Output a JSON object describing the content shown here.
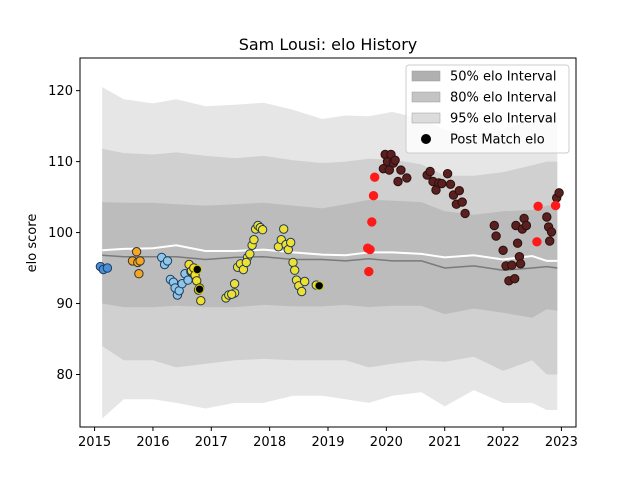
{
  "chart_data": {
    "type": "scatter",
    "title": "Sam Lousi: elo History",
    "xlabel": "",
    "ylabel": "elo score",
    "xlim": [
      2014.75,
      2023.25
    ],
    "ylim": [
      72.6,
      124.6
    ],
    "xticks": [
      2015,
      2016,
      2017,
      2018,
      2019,
      2020,
      2021,
      2022,
      2023
    ],
    "yticks": [
      80,
      90,
      100,
      110,
      120
    ],
    "grid": false,
    "legend_position": "top-right",
    "legend": [
      {
        "label": "50% elo Interval",
        "kind": "band",
        "color": "#b0b0b0"
      },
      {
        "label": "80% elo Interval",
        "kind": "band",
        "color": "#c4c4c4"
      },
      {
        "label": "95% elo Interval",
        "kind": "band",
        "color": "#dcdcdc"
      },
      {
        "label": "Post Match elo",
        "kind": "marker",
        "color": "#000000"
      }
    ],
    "band_x": [
      2015.13,
      2015.5,
      2016.0,
      2016.4,
      2016.9,
      2017.4,
      2017.9,
      2018.4,
      2018.9,
      2019.3,
      2019.7,
      2020.1,
      2020.6,
      2021.0,
      2021.5,
      2022.0,
      2022.5,
      2022.75,
      2022.93
    ],
    "bands": {
      "p95": {
        "color": "#e2e2e2",
        "upper": [
          120.5,
          118.8,
          118.2,
          118.8,
          117.8,
          118.0,
          118.3,
          117.3,
          116.0,
          116.5,
          116.4,
          117.0,
          116.0,
          114.5,
          114.0,
          114.5,
          116.0,
          116.8,
          116.5
        ],
        "lower": [
          73.8,
          76.5,
          76.5,
          76.0,
          75.2,
          76.0,
          76.0,
          77.0,
          77.0,
          76.5,
          76.0,
          77.0,
          77.5,
          75.5,
          77.8,
          76.0,
          76.0,
          75.0,
          75.0
        ]
      },
      "p80": {
        "color": "#cbcbcb",
        "upper": [
          111.8,
          111.2,
          111.0,
          111.3,
          110.8,
          110.5,
          110.8,
          110.2,
          109.8,
          110.0,
          110.4,
          110.3,
          109.6,
          108.0,
          108.0,
          108.5,
          109.5,
          110.0,
          110.0
        ],
        "lower": [
          84.0,
          82.0,
          82.0,
          81.0,
          81.5,
          82.0,
          82.2,
          82.0,
          82.0,
          82.0,
          81.0,
          81.5,
          82.0,
          81.8,
          82.5,
          80.5,
          82.0,
          80.0,
          80.0
        ]
      },
      "p50": {
        "color": "#b9b9b9",
        "upper": [
          104.3,
          104.2,
          104.2,
          104.0,
          103.8,
          104.0,
          104.2,
          103.8,
          103.4,
          104.0,
          104.6,
          104.5,
          104.3,
          103.0,
          102.5,
          103.0,
          103.2,
          103.8,
          104.0
        ],
        "lower": [
          90.0,
          89.5,
          89.5,
          89.7,
          89.5,
          89.5,
          89.8,
          89.6,
          89.6,
          89.8,
          89.5,
          89.7,
          89.7,
          88.5,
          89.3,
          88.7,
          88.0,
          89.2,
          89.0
        ]
      }
    },
    "lines": [
      {
        "name": "median",
        "color": "#7a7a7a",
        "x": [
          2015.13,
          2015.5,
          2016.0,
          2016.4,
          2016.9,
          2017.4,
          2017.9,
          2018.4,
          2018.9,
          2019.3,
          2019.7,
          2020.1,
          2020.6,
          2021.0,
          2021.5,
          2022.0,
          2022.5,
          2022.75,
          2022.93
        ],
        "y": [
          96.8,
          96.6,
          96.6,
          96.6,
          96.2,
          96.5,
          96.6,
          96.2,
          96.2,
          96.0,
          96.3,
          96.0,
          96.0,
          95.0,
          95.3,
          94.7,
          95.0,
          95.2,
          95.0
        ]
      },
      {
        "name": "mean",
        "color": "#ffffff",
        "x": [
          2015.13,
          2015.5,
          2016.0,
          2016.4,
          2016.9,
          2017.4,
          2017.9,
          2018.4,
          2018.9,
          2019.3,
          2019.7,
          2020.1,
          2020.6,
          2021.0,
          2021.5,
          2022.0,
          2022.5,
          2022.75,
          2022.93
        ],
        "y": [
          97.5,
          97.7,
          97.8,
          98.2,
          97.4,
          97.4,
          97.6,
          97.2,
          96.9,
          96.8,
          97.2,
          97.2,
          97.0,
          96.5,
          96.8,
          96.2,
          96.7,
          96.0,
          96.0
        ]
      }
    ],
    "series": [
      {
        "color": "#4a90d9",
        "edge": "#1f3b5c",
        "points": [
          [
            2015.1,
            95.2
          ],
          [
            2015.15,
            94.8
          ],
          [
            2015.22,
            95.0
          ]
        ]
      },
      {
        "color": "#f5a623",
        "edge": "#333333",
        "points": [
          [
            2015.65,
            96.0
          ],
          [
            2015.72,
            97.3
          ],
          [
            2015.74,
            95.8
          ],
          [
            2015.76,
            94.2
          ],
          [
            2015.78,
            96.0
          ]
        ]
      },
      {
        "color": "#8ec6ea",
        "edge": "#1f3b5c",
        "points": [
          [
            2016.15,
            96.5
          ],
          [
            2016.2,
            95.5
          ],
          [
            2016.25,
            96.0
          ],
          [
            2016.3,
            93.4
          ],
          [
            2016.35,
            93.0
          ],
          [
            2016.38,
            92.2
          ],
          [
            2016.42,
            91.2
          ],
          [
            2016.45,
            91.8
          ],
          [
            2016.5,
            92.8
          ],
          [
            2016.55,
            94.2
          ],
          [
            2016.6,
            93.3
          ],
          [
            2016.65,
            94.5
          ]
        ]
      },
      {
        "color": "#f0e030",
        "edge": "#333333",
        "points": [
          [
            2016.62,
            95.5
          ],
          [
            2016.66,
            94.6
          ],
          [
            2016.7,
            95.0
          ],
          [
            2016.72,
            94.0
          ],
          [
            2016.75,
            93.2
          ],
          [
            2016.78,
            91.9
          ],
          [
            2016.8,
            92.2
          ],
          [
            2016.82,
            90.4
          ]
        ]
      },
      {
        "color": "#000000",
        "edge": "#cccc00",
        "points": [
          [
            2016.76,
            94.8
          ],
          [
            2016.8,
            92.0
          ]
        ]
      },
      {
        "color": "#f0e030",
        "edge": "#1f3b5c",
        "points": [
          [
            2017.25,
            90.8
          ],
          [
            2017.3,
            91.2
          ],
          [
            2017.4,
            91.5
          ],
          [
            2017.45,
            95.1
          ],
          [
            2017.5,
            95.6
          ],
          [
            2017.55,
            94.8
          ],
          [
            2017.62,
            96.5
          ],
          [
            2017.66,
            97.0
          ],
          [
            2017.7,
            98.2
          ],
          [
            2017.73,
            99.0
          ],
          [
            2017.76,
            100.5
          ],
          [
            2017.8,
            101.0
          ],
          [
            2017.84,
            100.7
          ],
          [
            2017.88,
            100.4
          ],
          [
            2017.6,
            95.8
          ],
          [
            2017.4,
            92.8
          ],
          [
            2017.35,
            91.3
          ]
        ]
      },
      {
        "color": "#f0e030",
        "edge": "#1f3b5c",
        "points": [
          [
            2018.15,
            98.0
          ],
          [
            2018.2,
            99.0
          ],
          [
            2018.24,
            100.5
          ],
          [
            2018.28,
            98.3
          ],
          [
            2018.32,
            97.6
          ],
          [
            2018.36,
            98.6
          ],
          [
            2018.4,
            95.8
          ],
          [
            2018.43,
            94.7
          ],
          [
            2018.46,
            93.3
          ],
          [
            2018.5,
            92.5
          ],
          [
            2018.55,
            91.7
          ],
          [
            2018.6,
            93.1
          ],
          [
            2018.8,
            92.6
          ]
        ]
      },
      {
        "color": "#000000",
        "edge": "#cccc00",
        "points": [
          [
            2018.85,
            92.5
          ]
        ]
      },
      {
        "color": "#ff1a1a",
        "edge": "#ff1a1a",
        "points": [
          [
            2019.68,
            97.8
          ],
          [
            2019.72,
            97.6
          ],
          [
            2019.75,
            101.5
          ],
          [
            2019.78,
            105.2
          ],
          [
            2019.8,
            107.8
          ],
          [
            2019.7,
            94.5
          ]
        ]
      },
      {
        "color": "#5a2020",
        "edge": "#2a0e0e",
        "points": [
          [
            2019.95,
            109.0
          ],
          [
            2019.98,
            111.0
          ],
          [
            2020.02,
            110.0
          ],
          [
            2020.05,
            108.8
          ],
          [
            2020.08,
            111.0
          ],
          [
            2020.12,
            109.8
          ],
          [
            2020.15,
            110.2
          ],
          [
            2020.2,
            107.2
          ],
          [
            2020.25,
            108.8
          ],
          [
            2020.35,
            107.7
          ],
          [
            2020.7,
            108.1
          ],
          [
            2020.75,
            108.6
          ],
          [
            2020.8,
            107.2
          ],
          [
            2020.85,
            106.0
          ],
          [
            2020.9,
            107.0
          ],
          [
            2020.95,
            106.9
          ],
          [
            2021.05,
            108.3
          ],
          [
            2021.1,
            106.8
          ],
          [
            2021.15,
            105.3
          ],
          [
            2021.2,
            104.0
          ],
          [
            2021.25,
            105.9
          ],
          [
            2021.3,
            104.3
          ],
          [
            2021.35,
            102.7
          ],
          [
            2021.85,
            101.0
          ],
          [
            2021.88,
            99.5
          ],
          [
            2022.0,
            97.5
          ],
          [
            2022.05,
            95.3
          ],
          [
            2022.1,
            93.2
          ],
          [
            2022.15,
            95.4
          ],
          [
            2022.2,
            93.5
          ],
          [
            2022.22,
            101.0
          ],
          [
            2022.25,
            98.5
          ],
          [
            2022.28,
            96.6
          ],
          [
            2022.3,
            95.6
          ],
          [
            2022.33,
            100.5
          ],
          [
            2022.36,
            102.0
          ],
          [
            2022.4,
            101.0
          ],
          [
            2022.75,
            102.2
          ],
          [
            2022.78,
            100.8
          ],
          [
            2022.8,
            98.8
          ],
          [
            2022.83,
            100.1
          ],
          [
            2022.92,
            104.9
          ],
          [
            2022.96,
            105.6
          ]
        ]
      },
      {
        "color": "#ff1a1a",
        "edge": "#ff1a1a",
        "points": [
          [
            2022.58,
            98.7
          ],
          [
            2022.6,
            103.7
          ],
          [
            2022.9,
            103.8
          ]
        ]
      }
    ]
  }
}
